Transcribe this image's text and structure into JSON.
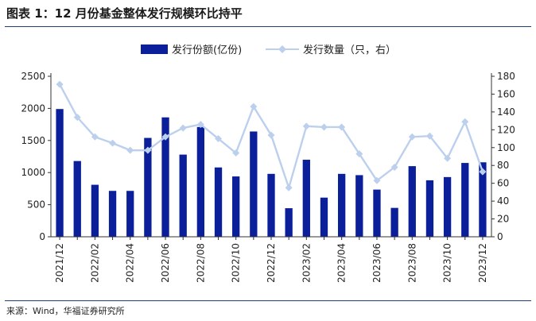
{
  "title": "图表 1：12 月份基金整体发行规模环比持平",
  "source": "来源：Wind，华福证券研究所",
  "colors": {
    "bar": "#0c1f9a",
    "line": "#bcd0ee",
    "marker": "#bcd0ee",
    "rule": "#1f3d7a"
  },
  "chart_data": {
    "type": "bar+line",
    "categories": [
      "2021/12",
      "2022/01",
      "2022/02",
      "2022/03",
      "2022/04",
      "2022/05",
      "2022/06",
      "2022/07",
      "2022/08",
      "2022/09",
      "2022/10",
      "2022/11",
      "2022/12",
      "2023/01",
      "2023/02",
      "2023/03",
      "2023/04",
      "2023/05",
      "2023/06",
      "2023/07",
      "2023/08",
      "2023/09",
      "2023/10",
      "2023/11",
      "2023/12"
    ],
    "x_tick_labels": [
      "2021/12",
      "",
      "2022/02",
      "",
      "2022/04",
      "",
      "2022/06",
      "",
      "2022/08",
      "",
      "2022/10",
      "",
      "2022/12",
      "",
      "2023/02",
      "",
      "2023/04",
      "",
      "2023/06",
      "",
      "2023/08",
      "",
      "2023/10",
      "",
      "2023/12"
    ],
    "series": [
      {
        "name": "发行份额(亿份)",
        "type": "bar",
        "axis": "left",
        "values": [
          1990,
          1180,
          810,
          715,
          715,
          1540,
          1860,
          1280,
          1710,
          1080,
          940,
          1640,
          980,
          445,
          1200,
          610,
          980,
          960,
          735,
          450,
          1100,
          880,
          930,
          1150,
          1160
        ]
      },
      {
        "name": "发行数量（只，右）",
        "type": "line",
        "axis": "right",
        "values": [
          171,
          134,
          112,
          105,
          97,
          97,
          112,
          122,
          126,
          110,
          94,
          146,
          114,
          55,
          124,
          123,
          123,
          93,
          63,
          78,
          112,
          113,
          88,
          129,
          73
        ]
      }
    ],
    "y_left": {
      "min": 0,
      "max": 2500,
      "ticks": [
        0,
        500,
        1000,
        1500,
        2000,
        2500
      ],
      "tick_labels": [
        "0",
        "500",
        "1000",
        "1500",
        "2000",
        "2500"
      ]
    },
    "y_right": {
      "min": 0,
      "max": 180,
      "ticks": [
        0,
        20,
        40,
        60,
        80,
        100,
        120,
        140,
        160,
        180
      ],
      "tick_labels": [
        "0",
        "20",
        "40",
        "60",
        "80",
        "100",
        "120",
        "140",
        "160",
        "180"
      ]
    },
    "legend_position": "top-center",
    "grid": false
  }
}
